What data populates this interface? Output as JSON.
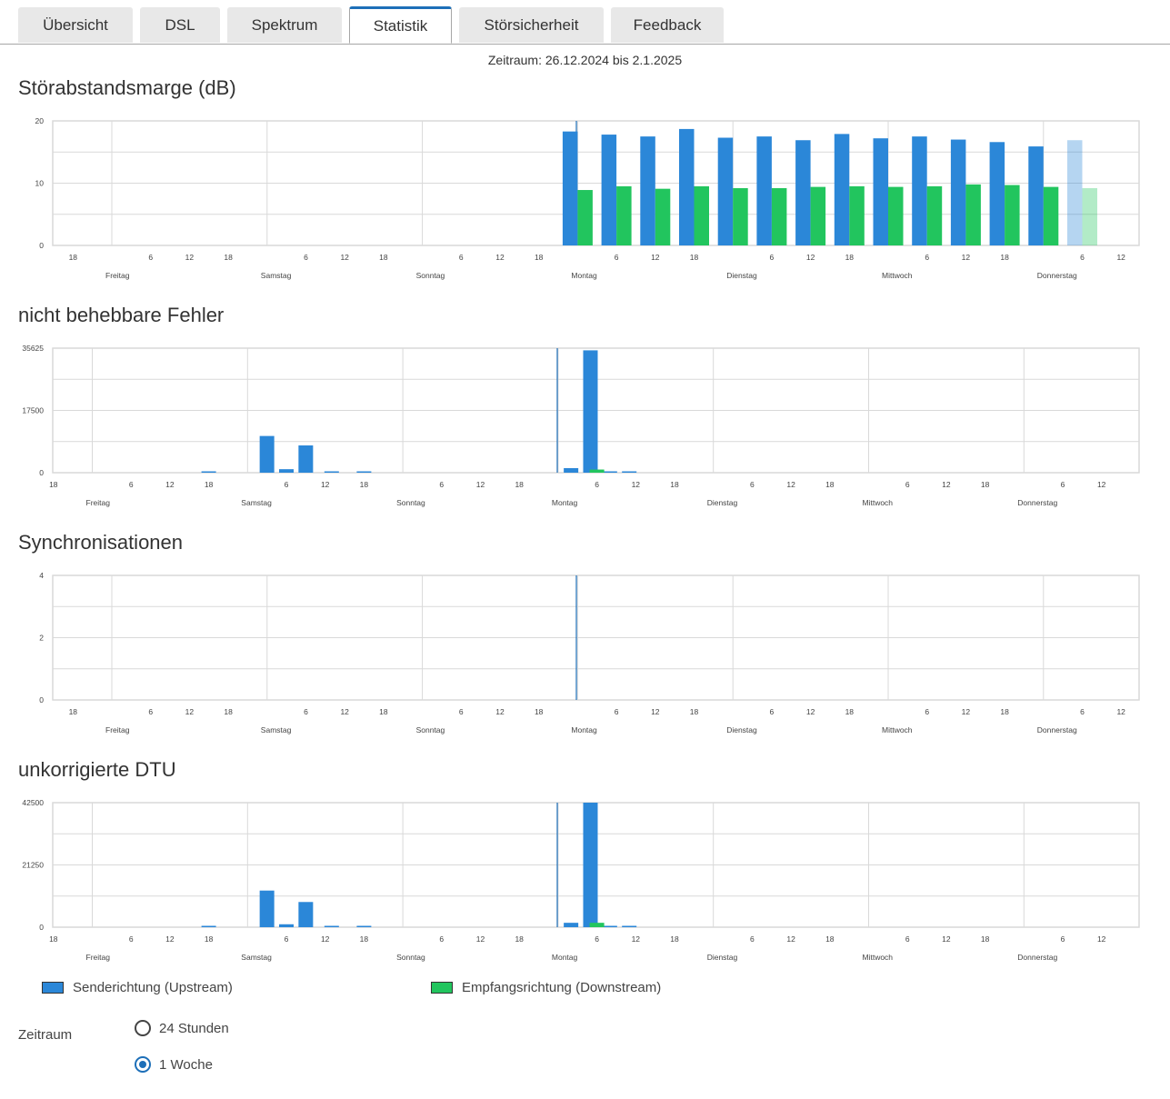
{
  "tabs": [
    {
      "label": "Übersicht",
      "active": false
    },
    {
      "label": "DSL",
      "active": false
    },
    {
      "label": "Spektrum",
      "active": false
    },
    {
      "label": "Statistik",
      "active": true
    },
    {
      "label": "Störsicherheit",
      "active": false
    },
    {
      "label": "Feedback",
      "active": false
    }
  ],
  "period_caption": "Zeitraum: 26.12.2024 bis 2.1.2025",
  "colors": {
    "upstream": "#2b87d8",
    "downstream": "#22c55e",
    "grid": "#d9d9d9",
    "now_line": "#1d6fb8"
  },
  "day_labels": [
    "Freitag",
    "Samstag",
    "Sonntag",
    "Montag",
    "Dienstag",
    "Mittwoch",
    "Donnerstag"
  ],
  "hour_ticks": [
    "18",
    "6",
    "12",
    "18",
    "6",
    "12",
    "18",
    "6",
    "12",
    "18",
    "6",
    "12",
    "18",
    "6",
    "12",
    "18",
    "6",
    "12",
    "18",
    "6",
    "12"
  ],
  "chart_data": [
    {
      "type": "bar",
      "title": "Störabstandsmarge (dB)",
      "yticks": [
        "0",
        "10",
        "20"
      ],
      "ylim": [
        0,
        20
      ],
      "bar_start_hour": 6,
      "bar_step_hours": 3,
      "last_bar_faded": true,
      "series": [
        {
          "name": "Senderichtung (Upstream)",
          "values": [
            18.3,
            17.8,
            17.5,
            18.7,
            17.3,
            17.5,
            16.9,
            17.9,
            17.2,
            17.5,
            17.0,
            16.6,
            15.9,
            16.9
          ]
        },
        {
          "name": "Empfangsrichtung (Downstream)",
          "values": [
            8.9,
            9.5,
            9.1,
            9.5,
            9.2,
            9.2,
            9.4,
            9.5,
            9.4,
            9.5,
            9.8,
            9.7,
            9.4,
            9.2
          ]
        }
      ]
    },
    {
      "type": "bar",
      "title": "nicht behebbare Fehler",
      "yticks": [
        "0",
        "17500",
        "35625"
      ],
      "ylim": [
        0,
        35625
      ],
      "series": [
        {
          "name": "Senderichtung (Upstream)",
          "points": [
            [
              24,
              200
            ],
            [
              33,
              10500
            ],
            [
              36,
              1000
            ],
            [
              39,
              7800
            ],
            [
              43,
              150
            ],
            [
              48,
              300
            ],
            [
              80,
              1300
            ],
            [
              83,
              35000
            ],
            [
              86,
              100
            ],
            [
              89,
              200
            ]
          ]
        },
        {
          "name": "Empfangsrichtung (Downstream)",
          "points": [
            [
              84,
              900
            ]
          ]
        }
      ]
    },
    {
      "type": "bar",
      "title": "Synchronisationen",
      "yticks": [
        "0",
        "2",
        "4"
      ],
      "ylim": [
        0,
        4
      ],
      "series": [
        {
          "name": "Senderichtung (Upstream)",
          "points": []
        },
        {
          "name": "Empfangsrichtung (Downstream)",
          "points": []
        }
      ]
    },
    {
      "type": "bar",
      "title": "unkorrigierte DTU",
      "yticks": [
        "0",
        "21250",
        "42500"
      ],
      "ylim": [
        0,
        42500
      ],
      "series": [
        {
          "name": "Senderichtung (Upstream)",
          "points": [
            [
              24,
              200
            ],
            [
              33,
              12500
            ],
            [
              36,
              1000
            ],
            [
              39,
              8600
            ],
            [
              43,
              150
            ],
            [
              48,
              300
            ],
            [
              80,
              1500
            ],
            [
              83,
              42500
            ],
            [
              86,
              100
            ],
            [
              89,
              200
            ]
          ]
        },
        {
          "name": "Empfangsrichtung (Downstream)",
          "points": [
            [
              84,
              1500
            ]
          ]
        }
      ]
    }
  ],
  "legend": [
    {
      "label": "Senderichtung (Upstream)",
      "color": "#2b87d8"
    },
    {
      "label": "Empfangsrichtung (Downstream)",
      "color": "#22c55e"
    }
  ],
  "zeitraum": {
    "label": "Zeitraum",
    "options": [
      {
        "label": "24 Stunden",
        "checked": false
      },
      {
        "label": "1 Woche",
        "checked": true
      }
    ]
  }
}
